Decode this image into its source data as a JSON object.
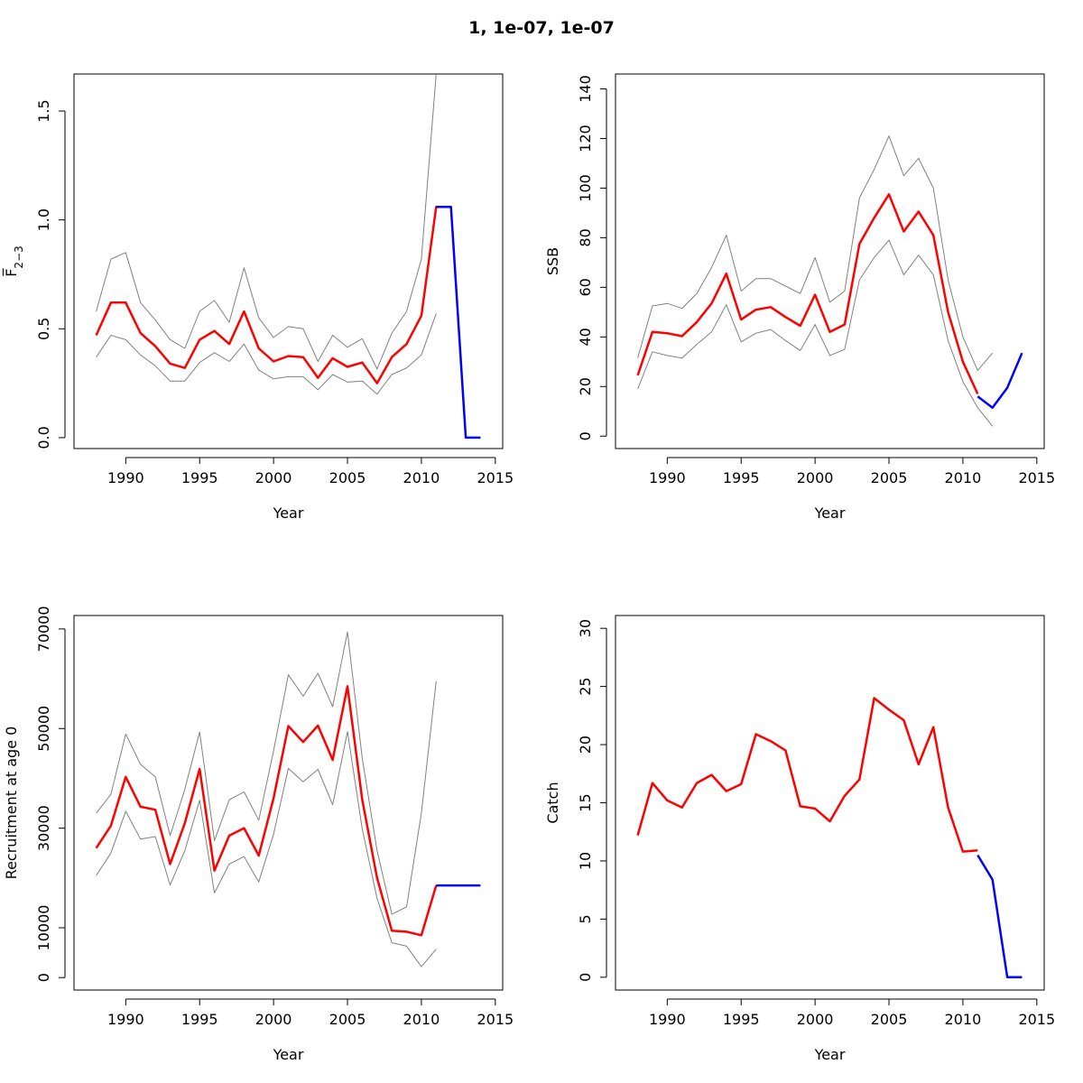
{
  "title": "1, 1e-07, 1e-07",
  "colors": {
    "estimate": "#ff0000",
    "forecast": "#0000ff",
    "bounds": "#808080"
  },
  "chart_data": [
    {
      "id": "fbar",
      "type": "line",
      "title": "",
      "xlabel": "Year",
      "ylabel": "F̅",
      "ylabel_sub": "2−3",
      "xlim": [
        1986.5,
        2015.5
      ],
      "ylim": [
        -0.05,
        1.67
      ],
      "xticks": [
        "1990",
        "1995",
        "2000",
        "2005",
        "2010",
        "2015"
      ],
      "yticks": [
        "0.0",
        "0.5",
        "1.0",
        "1.5"
      ],
      "series": [
        {
          "role": "estimate",
          "x": [
            1988,
            1989,
            1990,
            1991,
            1992,
            1993,
            1994,
            1995,
            1996,
            1997,
            1998,
            1999,
            2000,
            2001,
            2002,
            2003,
            2004,
            2005,
            2006,
            2007,
            2008,
            2009,
            2010,
            2011,
            2012
          ],
          "y": [
            0.47,
            0.62,
            0.62,
            0.48,
            0.42,
            0.34,
            0.32,
            0.45,
            0.49,
            0.43,
            0.58,
            0.41,
            0.35,
            0.375,
            0.37,
            0.275,
            0.365,
            0.325,
            0.345,
            0.25,
            0.37,
            0.43,
            0.56,
            1.06,
            1.06
          ]
        },
        {
          "role": "upper",
          "x": [
            1988,
            1989,
            1990,
            1991,
            1992,
            1993,
            1994,
            1995,
            1996,
            1997,
            1998,
            1999,
            2000,
            2001,
            2002,
            2003,
            2004,
            2005,
            2006,
            2007,
            2008,
            2009,
            2010,
            2011
          ],
          "y": [
            0.58,
            0.82,
            0.85,
            0.62,
            0.54,
            0.45,
            0.41,
            0.58,
            0.63,
            0.53,
            0.78,
            0.55,
            0.46,
            0.51,
            0.5,
            0.35,
            0.47,
            0.415,
            0.455,
            0.315,
            0.48,
            0.58,
            0.82,
            1.67
          ]
        },
        {
          "role": "lower",
          "x": [
            1988,
            1989,
            1990,
            1991,
            1992,
            1993,
            1994,
            1995,
            1996,
            1997,
            1998,
            1999,
            2000,
            2001,
            2002,
            2003,
            2004,
            2005,
            2006,
            2007,
            2008,
            2009,
            2010,
            2011
          ],
          "y": [
            0.37,
            0.47,
            0.45,
            0.38,
            0.33,
            0.26,
            0.26,
            0.345,
            0.39,
            0.35,
            0.43,
            0.31,
            0.27,
            0.28,
            0.28,
            0.22,
            0.29,
            0.255,
            0.26,
            0.2,
            0.29,
            0.32,
            0.38,
            0.57
          ]
        },
        {
          "role": "forecast",
          "x": [
            2011,
            2012,
            2013,
            2014
          ],
          "y": [
            1.06,
            1.06,
            0.0,
            0.0
          ]
        }
      ]
    },
    {
      "id": "ssb",
      "type": "line",
      "title": "",
      "xlabel": "Year",
      "ylabel": "SSB",
      "ylabel_sub": "",
      "xlim": [
        1986.5,
        2015.5
      ],
      "ylim": [
        -5,
        146
      ],
      "xticks": [
        "1990",
        "1995",
        "2000",
        "2005",
        "2010",
        "2015"
      ],
      "yticks": [
        "0",
        "20",
        "40",
        "60",
        "80",
        "100",
        "120",
        "140"
      ],
      "series": [
        {
          "role": "estimate",
          "x": [
            1988,
            1989,
            1990,
            1991,
            1992,
            1993,
            1994,
            1995,
            1996,
            1997,
            1998,
            1999,
            2000,
            2001,
            2002,
            2003,
            2004,
            2005,
            2006,
            2007,
            2008,
            2009,
            2010,
            2011
          ],
          "y": [
            24.5,
            42,
            41.5,
            40.3,
            46,
            53.5,
            65.5,
            47,
            51,
            52,
            48,
            44.5,
            57,
            42,
            45,
            77.5,
            88,
            97.5,
            82.5,
            90.5,
            81,
            50,
            30,
            17
          ]
        },
        {
          "role": "upper",
          "x": [
            1988,
            1989,
            1990,
            1991,
            1992,
            1993,
            1994,
            1995,
            1996,
            1997,
            1998,
            1999,
            2000,
            2001,
            2002,
            2003,
            2004,
            2005,
            2006,
            2007,
            2008,
            2009,
            2010,
            2011,
            2012
          ],
          "y": [
            31.5,
            52.5,
            53.5,
            51.5,
            57.5,
            68,
            81,
            58.5,
            63.5,
            63.5,
            60.5,
            57.5,
            72,
            54,
            58.5,
            96,
            107.5,
            121,
            105,
            112,
            100,
            63,
            40,
            26.5,
            33.5
          ]
        },
        {
          "role": "lower",
          "x": [
            1988,
            1989,
            1990,
            1991,
            1992,
            1993,
            1994,
            1995,
            1996,
            1997,
            1998,
            1999,
            2000,
            2001,
            2002,
            2003,
            2004,
            2005,
            2006,
            2007,
            2008,
            2009,
            2010,
            2011,
            2012
          ],
          "y": [
            19,
            34,
            32.5,
            31.5,
            37,
            42,
            53,
            38,
            41.5,
            43,
            38.5,
            34.5,
            45,
            32.5,
            35,
            63,
            72,
            79,
            65,
            73,
            65,
            38.5,
            22,
            11.5,
            4
          ]
        },
        {
          "role": "forecast",
          "x": [
            2011,
            2012,
            2013,
            2014
          ],
          "y": [
            16,
            11.5,
            19.5,
            33.5
          ]
        }
      ]
    },
    {
      "id": "recruitment",
      "type": "line",
      "title": "",
      "xlabel": "Year",
      "ylabel": "Recruitment at age 0",
      "ylabel_sub": "",
      "xlim": [
        1986.5,
        2015.5
      ],
      "ylim": [
        -2500,
        72700
      ],
      "xticks": [
        "1990",
        "1995",
        "2000",
        "2005",
        "2010",
        "2015"
      ],
      "yticks": [
        "0",
        "10000",
        "30000",
        "50000",
        "70000"
      ],
      "ytick_values": [
        0,
        10000,
        30000,
        50000,
        70000
      ],
      "series": [
        {
          "role": "estimate",
          "x": [
            1988,
            1989,
            1990,
            1991,
            1992,
            1993,
            1994,
            1995,
            1996,
            1997,
            1998,
            1999,
            2000,
            2001,
            2002,
            2003,
            2004,
            2005,
            2006,
            2007,
            2008,
            2009,
            2010,
            2011
          ],
          "y": [
            26000,
            30500,
            40300,
            34300,
            33700,
            22800,
            31000,
            41900,
            21500,
            28500,
            30000,
            24500,
            36000,
            50500,
            47300,
            50600,
            43700,
            58500,
            35700,
            20000,
            9400,
            9200,
            8500,
            18500
          ]
        },
        {
          "role": "upper",
          "x": [
            1988,
            1989,
            1990,
            1991,
            1992,
            1993,
            1994,
            1995,
            1996,
            1997,
            1998,
            1999,
            2000,
            2001,
            2002,
            2003,
            2004,
            2005,
            2006,
            2007,
            2008,
            2009,
            2010,
            2011
          ],
          "y": [
            33000,
            36800,
            48900,
            42800,
            40300,
            28500,
            37800,
            49300,
            27500,
            35700,
            37300,
            31600,
            45500,
            60800,
            56500,
            61100,
            54400,
            69400,
            44000,
            25500,
            12700,
            14200,
            33000,
            59500
          ]
        },
        {
          "role": "lower",
          "x": [
            1988,
            1989,
            1990,
            1991,
            1992,
            1993,
            1994,
            1995,
            1996,
            1997,
            1998,
            1999,
            2000,
            2001,
            2002,
            2003,
            2004,
            2005,
            2006,
            2007,
            2008,
            2009,
            2010,
            2011
          ],
          "y": [
            20500,
            25000,
            33400,
            27800,
            28300,
            18600,
            25500,
            35600,
            17000,
            22800,
            24300,
            19200,
            28800,
            42000,
            39300,
            41800,
            34700,
            49400,
            29800,
            15900,
            7000,
            6300,
            2200,
            5700
          ]
        },
        {
          "role": "forecast",
          "x": [
            2011,
            2012,
            2013,
            2014
          ],
          "y": [
            18500,
            18500,
            18500,
            18500
          ]
        }
      ]
    },
    {
      "id": "catch",
      "type": "line",
      "title": "",
      "xlabel": "Year",
      "ylabel": "Catch",
      "ylabel_sub": "",
      "xlim": [
        1986.5,
        2015.5
      ],
      "ylim": [
        -1.1,
        31.1
      ],
      "xticks": [
        "1990",
        "1995",
        "2000",
        "2005",
        "2010",
        "2015"
      ],
      "yticks": [
        "0",
        "5",
        "10",
        "15",
        "20",
        "25",
        "30"
      ],
      "series": [
        {
          "role": "estimate",
          "x": [
            1988,
            1989,
            1990,
            1991,
            1992,
            1993,
            1994,
            1995,
            1996,
            1997,
            1998,
            1999,
            2000,
            2001,
            2002,
            2003,
            2004,
            2005,
            2006,
            2007,
            2008,
            2009,
            2010,
            2011
          ],
          "y": [
            12.2,
            16.7,
            15.2,
            14.6,
            16.7,
            17.4,
            16.0,
            16.6,
            20.9,
            20.3,
            19.5,
            14.7,
            14.5,
            13.4,
            15.6,
            17.0,
            24.0,
            23.0,
            22.1,
            18.3,
            21.5,
            14.6,
            10.8,
            10.9
          ]
        },
        {
          "role": "forecast",
          "x": [
            2011,
            2012,
            2013,
            2014
          ],
          "y": [
            10.5,
            8.4,
            0.0,
            0.0
          ]
        }
      ]
    }
  ]
}
